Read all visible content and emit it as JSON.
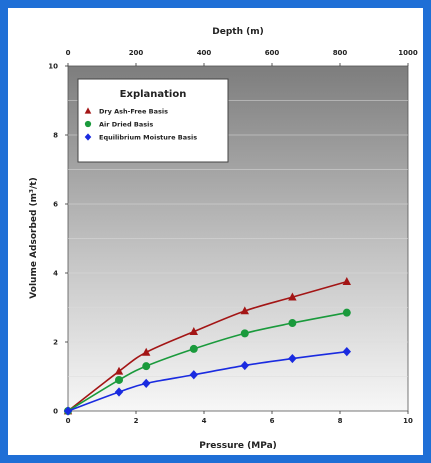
{
  "chart_data": {
    "type": "line",
    "xlabel": "Pressure (MPa)",
    "ylabel": "Volume Adsorbed (m³/t)",
    "top_xlabel": "Depth (m)",
    "xlim": [
      0,
      10
    ],
    "ylim": [
      0,
      10
    ],
    "top_xlim": [
      0,
      1000
    ],
    "x_ticks": [
      "0",
      "2",
      "4",
      "6",
      "8",
      "10"
    ],
    "y_ticks": [
      "0",
      "2",
      "4",
      "6",
      "8",
      "10"
    ],
    "top_ticks": [
      "0",
      "200",
      "400",
      "600",
      "800",
      "1000"
    ],
    "grid": "horizontal",
    "legend": {
      "title": "Explanation",
      "position": "top-left"
    },
    "series": [
      {
        "name": "Dry Ash-Free Basis",
        "color": "#a31515",
        "marker": "triangle",
        "x": [
          0,
          1.5,
          2.3,
          3.7,
          5.2,
          6.6,
          8.2
        ],
        "y": [
          0,
          1.15,
          1.7,
          2.3,
          2.9,
          3.3,
          3.75
        ]
      },
      {
        "name": "Air Dried Basis",
        "color": "#1a9a3c",
        "marker": "circle",
        "x": [
          0,
          1.5,
          2.3,
          3.7,
          5.2,
          6.6,
          8.2
        ],
        "y": [
          0,
          0.9,
          1.3,
          1.8,
          2.25,
          2.55,
          2.85
        ]
      },
      {
        "name": "Equilibrium Moisture Basis",
        "color": "#1a2be0",
        "marker": "diamond",
        "x": [
          0,
          1.5,
          2.3,
          3.7,
          5.2,
          6.6,
          8.2
        ],
        "y": [
          0,
          0.55,
          0.8,
          1.05,
          1.32,
          1.52,
          1.72
        ]
      }
    ]
  }
}
